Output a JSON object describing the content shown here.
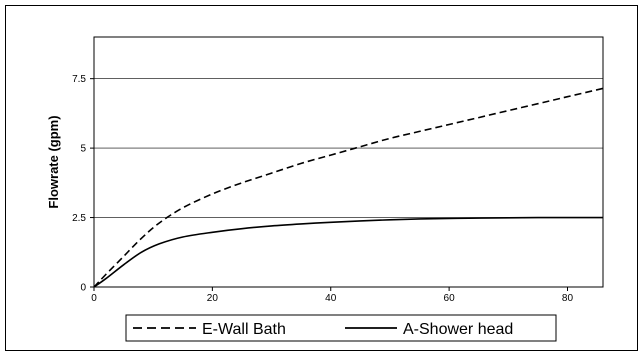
{
  "chart_data": {
    "type": "line",
    "title": "",
    "xlabel": "",
    "ylabel": "Flowrate (gpm)",
    "xlim": [
      0,
      86
    ],
    "ylim": [
      0,
      9
    ],
    "x_ticks": [
      "0",
      "20",
      "40",
      "60",
      "80"
    ],
    "x_tick_values": [
      0,
      20,
      40,
      60,
      80
    ],
    "y_ticks": [
      "0",
      "2.5",
      "5",
      "7.5"
    ],
    "y_tick_values": [
      0,
      2.5,
      5,
      7.5
    ],
    "grid": "horizontal",
    "legend_position": "bottom",
    "series": [
      {
        "name": "E-Wall Bath",
        "style": "dashed",
        "color": "#000000",
        "x": [
          0,
          2,
          5,
          8,
          11,
          15,
          20,
          25,
          30,
          35,
          40,
          45,
          50,
          55,
          60,
          65,
          70,
          75,
          80,
          86
        ],
        "y": [
          0,
          0.45,
          1.1,
          1.75,
          2.3,
          2.85,
          3.35,
          3.75,
          4.1,
          4.45,
          4.75,
          5.05,
          5.35,
          5.6,
          5.85,
          6.1,
          6.35,
          6.6,
          6.85,
          7.15
        ]
      },
      {
        "name": "A-Shower head",
        "style": "solid",
        "color": "#000000",
        "x": [
          0,
          2,
          5,
          8,
          11,
          15,
          20,
          25,
          30,
          35,
          40,
          45,
          50,
          55,
          60,
          65,
          70,
          75,
          80,
          86
        ],
        "y": [
          0,
          0.3,
          0.8,
          1.25,
          1.55,
          1.8,
          1.97,
          2.1,
          2.2,
          2.27,
          2.33,
          2.38,
          2.42,
          2.45,
          2.47,
          2.48,
          2.49,
          2.5,
          2.5,
          2.5
        ]
      }
    ]
  }
}
